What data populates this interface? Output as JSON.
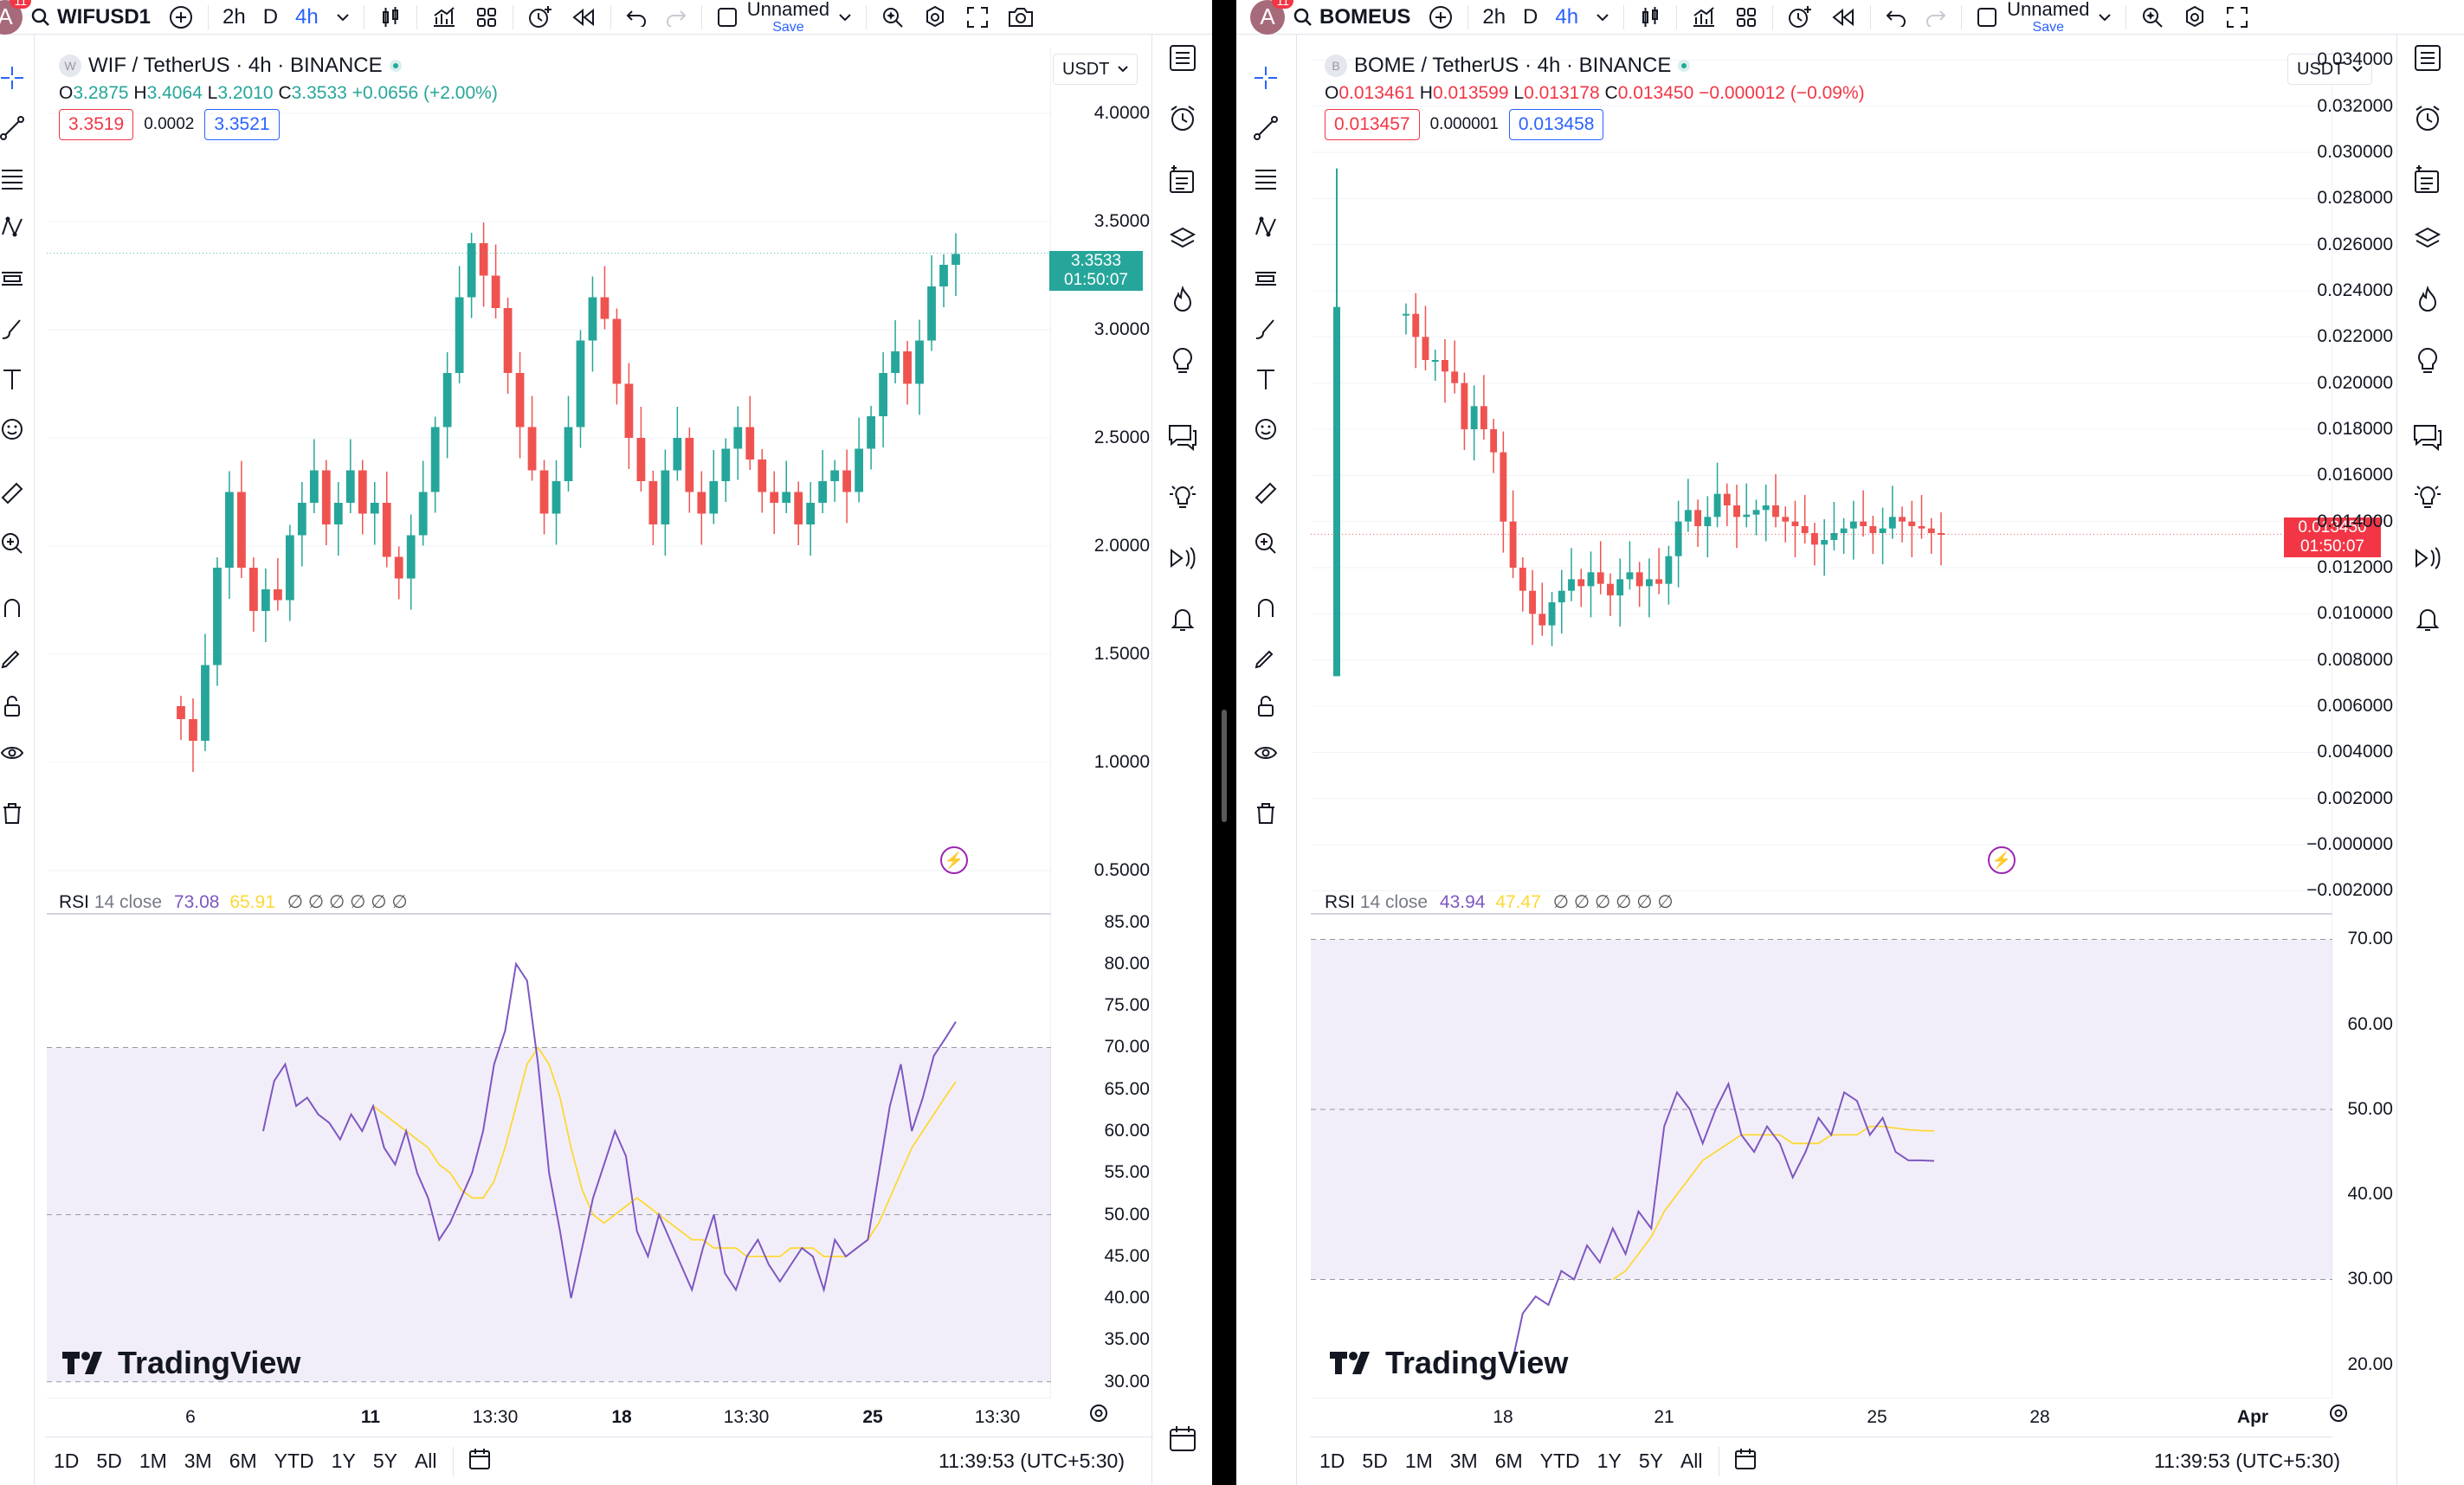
{
  "left": {
    "symbol_search": "WIFUSD1",
    "intervals": [
      "2h",
      "D",
      "4h"
    ],
    "active_interval": "4h",
    "layout_name": "Unnamed",
    "save_label": "Save",
    "avatar_letter": "A",
    "avatar_badge": "11",
    "title": "WIF / TetherUS · 4h · BINANCE",
    "logo_letter": "W",
    "ohlc": {
      "o": "3.2875",
      "h": "3.4064",
      "l": "3.2010",
      "c": "3.3533",
      "change": "+0.0656 (+2.00%)"
    },
    "sell_price": "3.3519",
    "spread": "0.0002",
    "buy_price": "3.3521",
    "currency": "USDT",
    "price_axis": [
      "4.0000",
      "3.5000",
      "3.0000",
      "2.5000",
      "2.0000",
      "1.5000",
      "1.0000",
      "0.5000"
    ],
    "last_price": "3.3533",
    "countdown": "01:50:07",
    "rsi": {
      "label": "RSI",
      "params": "14 close",
      "value": "73.08",
      "ma": "65.91",
      "icons": "∅ ∅ ∅ ∅ ∅ ∅"
    },
    "rsi_axis": [
      "85.00",
      "80.00",
      "75.00",
      "70.00",
      "65.00",
      "60.00",
      "55.00",
      "50.00",
      "45.00",
      "40.00",
      "35.00",
      "30.00"
    ],
    "time_axis": [
      {
        "t": "6",
        "bold": false
      },
      {
        "t": "11",
        "bold": true
      },
      {
        "t": "13:30",
        "bold": false
      },
      {
        "t": "18",
        "bold": true
      },
      {
        "t": "13:30",
        "bold": false
      },
      {
        "t": "25",
        "bold": true
      },
      {
        "t": "13:30",
        "bold": false
      }
    ],
    "ranges": [
      "1D",
      "5D",
      "1M",
      "3M",
      "6M",
      "YTD",
      "1Y",
      "5Y",
      "All"
    ],
    "clock": "11:39:53 (UTC+5:30)",
    "brand": "TradingView"
  },
  "right": {
    "symbol_search": "BOMEUS",
    "intervals": [
      "2h",
      "D",
      "4h"
    ],
    "active_interval": "4h",
    "layout_name": "Unnamed",
    "save_label": "Save",
    "avatar_letter": "A",
    "avatar_badge": "11",
    "title": "BOME / TetherUS · 4h · BINANCE",
    "logo_letter": "B",
    "ohlc": {
      "o": "0.013461",
      "h": "0.013599",
      "l": "0.013178",
      "c": "0.013450",
      "change": "−0.000012 (−0.09%)"
    },
    "sell_price": "0.013457",
    "spread": "0.000001",
    "buy_price": "0.013458",
    "currency": "USDT",
    "price_axis": [
      "0.034000",
      "0.032000",
      "0.030000",
      "0.028000",
      "0.026000",
      "0.024000",
      "0.022000",
      "0.020000",
      "0.018000",
      "0.016000",
      "0.014000",
      "0.012000",
      "0.010000",
      "0.008000",
      "0.006000",
      "0.004000",
      "0.002000",
      "−0.000000",
      "−0.002000"
    ],
    "last_price": "0.013450",
    "countdown": "01:50:07",
    "rsi": {
      "label": "RSI",
      "params": "14 close",
      "value": "43.94",
      "ma": "47.47",
      "icons": "∅ ∅ ∅ ∅ ∅ ∅"
    },
    "rsi_axis": [
      "70.00",
      "60.00",
      "50.00",
      "40.00",
      "30.00",
      "20.00"
    ],
    "time_axis": [
      {
        "t": "18",
        "bold": false
      },
      {
        "t": "21",
        "bold": false
      },
      {
        "t": "25",
        "bold": false
      },
      {
        "t": "28",
        "bold": false
      },
      {
        "t": "Apr",
        "bold": true
      }
    ],
    "ranges": [
      "1D",
      "5D",
      "1M",
      "3M",
      "6M",
      "YTD",
      "1Y",
      "5Y",
      "All"
    ],
    "clock": "11:39:53 (UTC+5:30)",
    "brand": "TradingView"
  },
  "colors": {
    "up": "#26a69a",
    "down": "#ef5350",
    "rsi_line": "#7e57c2",
    "rsi_ma": "#fdd835",
    "accent": "#2962ff",
    "last_price_up": "#26a69a",
    "last_price_down": "#f23645"
  },
  "chart_data": [
    {
      "type": "candlestick",
      "title": "WIF / TetherUS · 4h · BINANCE",
      "ylim": [
        0.3,
        4.3
      ],
      "x_labels": [
        "6",
        "11",
        "13:30",
        "18",
        "13:30",
        "25",
        "13:30"
      ],
      "close_trend": [
        1.2,
        1.1,
        1.45,
        1.9,
        2.25,
        1.9,
        1.7,
        1.8,
        1.75,
        2.05,
        2.2,
        2.35,
        2.1,
        2.2,
        2.35,
        2.15,
        2.2,
        1.95,
        1.85,
        2.05,
        2.25,
        2.55,
        2.8,
        3.15,
        3.4,
        3.25,
        3.1,
        2.8,
        2.55,
        2.35,
        2.15,
        2.3,
        2.55,
        2.95,
        3.15,
        3.05,
        2.75,
        2.5,
        2.3,
        2.1,
        2.35,
        2.5,
        2.25,
        2.15,
        2.3,
        2.45,
        2.55,
        2.4,
        2.25,
        2.2,
        2.25,
        2.1,
        2.2,
        2.3,
        2.35,
        2.25,
        2.45,
        2.6,
        2.8,
        2.9,
        2.75,
        2.95,
        3.2,
        3.3,
        3.35
      ],
      "last_price": 3.3533
    },
    {
      "type": "line",
      "title": "RSI 14 close",
      "ylim": [
        28,
        86
      ],
      "series": [
        {
          "name": "RSI",
          "values": [
            60,
            66,
            68,
            63,
            64,
            62,
            61,
            59,
            62,
            60,
            63,
            58,
            56,
            60,
            55,
            52,
            47,
            49,
            52,
            55,
            60,
            68,
            72,
            80,
            78,
            68,
            55,
            48,
            40,
            46,
            52,
            56,
            60,
            57,
            48,
            45,
            50,
            47,
            44,
            41,
            46,
            50,
            43,
            41,
            45,
            47,
            44,
            42,
            44,
            46,
            45,
            41,
            47,
            45,
            46,
            47,
            55,
            63,
            68,
            60,
            64,
            69,
            71,
            73.08
          ]
        },
        {
          "name": "MA",
          "values": [
            null,
            null,
            null,
            null,
            null,
            null,
            null,
            null,
            null,
            null,
            63,
            62,
            61,
            60,
            59,
            58,
            56,
            55,
            53,
            52,
            52,
            54,
            58,
            63,
            68,
            70,
            68,
            64,
            58,
            53,
            50,
            49,
            50,
            51,
            52,
            51,
            50,
            49,
            48,
            47,
            47,
            46,
            46,
            46,
            45,
            45,
            45,
            45,
            46,
            46,
            46,
            45,
            45,
            45,
            46,
            47,
            49,
            52,
            55,
            58,
            60,
            62,
            64,
            65.91
          ]
        }
      ],
      "levels": [
        70,
        50,
        30
      ]
    },
    {
      "type": "candlestick",
      "title": "BOME / TetherUS · 4h · BINANCE",
      "ylim": [
        -0.003,
        0.0345
      ],
      "x_labels": [
        "18",
        "21",
        "25",
        "28",
        "Apr"
      ],
      "close_trend": [
        0.023,
        0.022,
        0.021,
        0.021,
        0.0205,
        0.02,
        0.018,
        0.019,
        0.018,
        0.017,
        0.014,
        0.012,
        0.011,
        0.01,
        0.0095,
        0.0105,
        0.011,
        0.0115,
        0.0112,
        0.0118,
        0.0113,
        0.0108,
        0.0115,
        0.0118,
        0.0112,
        0.0115,
        0.0113,
        0.0125,
        0.014,
        0.0145,
        0.0138,
        0.0142,
        0.0152,
        0.0147,
        0.0142,
        0.0143,
        0.0145,
        0.0147,
        0.0142,
        0.014,
        0.0138,
        0.0135,
        0.013,
        0.0132,
        0.0135,
        0.0137,
        0.014,
        0.0138,
        0.0135,
        0.0137,
        0.0142,
        0.014,
        0.0138,
        0.0137,
        0.0135,
        0.01345
      ],
      "last_price": 0.01345
    },
    {
      "type": "line",
      "title": "RSI 14 close",
      "ylim": [
        16,
        73
      ],
      "series": [
        {
          "name": "RSI",
          "values": [
            19,
            26,
            28,
            27,
            31,
            30,
            34,
            32,
            36,
            33,
            38,
            36,
            48,
            52,
            50,
            46,
            50,
            53,
            47,
            45,
            48,
            46,
            42,
            45,
            49,
            47,
            52,
            51,
            47,
            49,
            45,
            44,
            44,
            43.94
          ]
        },
        {
          "name": "MA",
          "values": [
            null,
            null,
            null,
            null,
            null,
            null,
            null,
            null,
            30,
            31,
            33,
            35,
            38,
            40,
            42,
            44,
            45,
            46,
            47,
            47,
            47,
            47,
            46,
            46,
            46,
            47,
            47,
            47,
            48,
            48,
            47.8,
            47.6,
            47.5,
            47.47
          ]
        }
      ],
      "levels": [
        70,
        50,
        30
      ]
    }
  ]
}
